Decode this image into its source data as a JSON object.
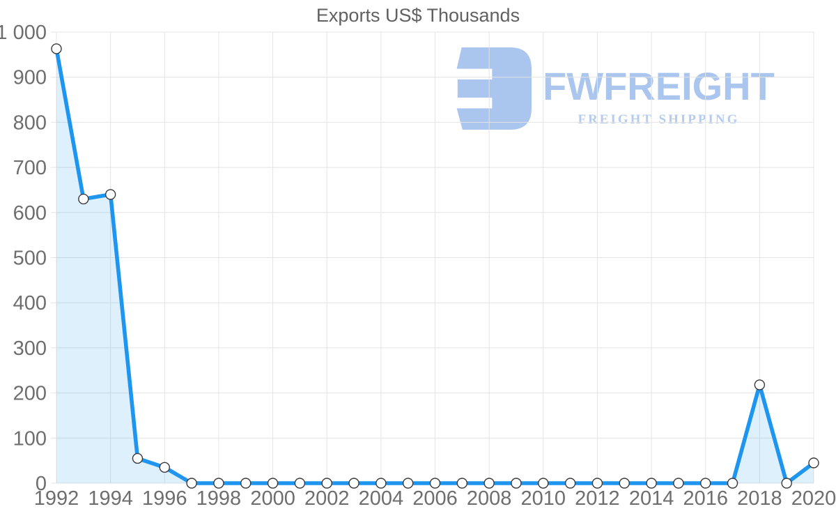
{
  "title": "Exports US$ Thousands",
  "watermark": {
    "name": "FWFREIGHT",
    "tagline": "FREIGHT SHIPPING",
    "icon": "fwfreight-logo-icon",
    "color": "#a6c2ee",
    "tagline_color": "#b0caf1"
  },
  "chart_data": {
    "type": "area",
    "title": "Exports US$ Thousands",
    "xlabel": "",
    "ylabel": "",
    "x": [
      1992,
      1993,
      1994,
      1995,
      1996,
      1997,
      1998,
      1999,
      2000,
      2001,
      2002,
      2003,
      2004,
      2005,
      2006,
      2007,
      2008,
      2009,
      2010,
      2011,
      2012,
      2013,
      2014,
      2015,
      2016,
      2017,
      2018,
      2019,
      2020
    ],
    "series": [
      {
        "name": "Exports US$ Thousands",
        "values": [
          963,
          630,
          640,
          55,
          35,
          0,
          0,
          0,
          0,
          0,
          0,
          0,
          0,
          0,
          0,
          0,
          0,
          0,
          0,
          0,
          0,
          0,
          0,
          0,
          0,
          0,
          218,
          0,
          45
        ]
      }
    ],
    "ylim": [
      0,
      1000
    ],
    "y_tick_step": 100,
    "y_tick_labels": [
      "0",
      "100",
      "200",
      "300",
      "400",
      "500",
      "600",
      "700",
      "800",
      "900",
      "1 000"
    ],
    "x_tick_labels": [
      "1992",
      "1994",
      "1996",
      "1998",
      "2000",
      "2002",
      "2004",
      "2006",
      "2008",
      "2010",
      "2012",
      "2014",
      "2016",
      "2018",
      "2020"
    ],
    "grid": true,
    "legend": "none",
    "line_color": "#1e96f0",
    "fill_color": "rgba(30,150,240,0.14)",
    "grid_color": "#e4e4e4",
    "axis_label_color": "#6e6e6e",
    "marker_fill": "#ffffff",
    "marker_stroke": "#3a3a3a"
  }
}
